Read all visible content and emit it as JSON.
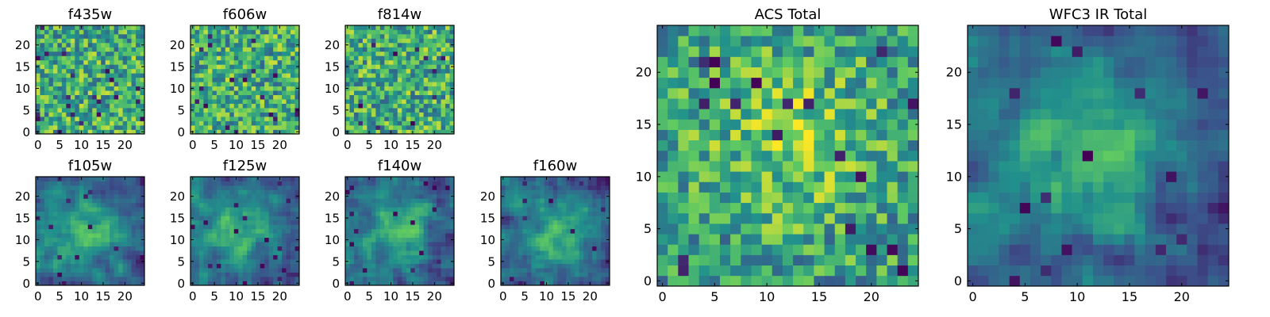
{
  "colormap": {
    "name": "viridis",
    "stops": [
      "#440154",
      "#3b528b",
      "#21918c",
      "#5ec962",
      "#fde725"
    ]
  },
  "chart_data": [
    {
      "type": "heatmap",
      "title": "f435w",
      "grid": [
        25,
        25
      ],
      "xticks": [
        "0",
        "5",
        "10",
        "15",
        "20"
      ],
      "yticks": [
        "0",
        "5",
        "10",
        "15",
        "20"
      ],
      "xlim": [
        -0.5,
        24.5
      ],
      "ylim": [
        -0.5,
        24.5
      ],
      "pattern": "noise",
      "center": [
        12,
        12
      ]
    },
    {
      "type": "heatmap",
      "title": "f606w",
      "grid": [
        25,
        25
      ],
      "xticks": [
        "0",
        "5",
        "10",
        "15",
        "20"
      ],
      "yticks": [
        "0",
        "5",
        "10",
        "15",
        "20"
      ],
      "xlim": [
        -0.5,
        24.5
      ],
      "ylim": [
        -0.5,
        24.5
      ],
      "pattern": "noise",
      "center": [
        12,
        12
      ]
    },
    {
      "type": "heatmap",
      "title": "f814w",
      "grid": [
        25,
        25
      ],
      "xticks": [
        "0",
        "5",
        "10",
        "15",
        "20"
      ],
      "yticks": [
        "0",
        "5",
        "10",
        "15",
        "20"
      ],
      "xlim": [
        -0.5,
        24.5
      ],
      "ylim": [
        -0.5,
        24.5
      ],
      "pattern": "noise",
      "center": [
        12,
        12
      ]
    },
    {
      "type": "heatmap",
      "title": "f105w",
      "grid": [
        25,
        25
      ],
      "xticks": [
        "0",
        "5",
        "10",
        "15",
        "20"
      ],
      "yticks": [
        "0",
        "5",
        "10",
        "15",
        "20"
      ],
      "xlim": [
        -0.5,
        24.5
      ],
      "ylim": [
        -0.5,
        24.5
      ],
      "pattern": "smooth blob",
      "center": [
        12,
        11
      ]
    },
    {
      "type": "heatmap",
      "title": "f125w",
      "grid": [
        25,
        25
      ],
      "xticks": [
        "0",
        "5",
        "10",
        "15",
        "20"
      ],
      "yticks": [
        "0",
        "5",
        "10",
        "15",
        "20"
      ],
      "xlim": [
        -0.5,
        24.5
      ],
      "ylim": [
        -0.5,
        24.5
      ],
      "pattern": "smooth blob",
      "center": [
        12,
        12
      ]
    },
    {
      "type": "heatmap",
      "title": "f140w",
      "grid": [
        25,
        25
      ],
      "xticks": [
        "0",
        "5",
        "10",
        "15",
        "20"
      ],
      "yticks": [
        "0",
        "5",
        "10",
        "15",
        "20"
      ],
      "xlim": [
        -0.5,
        24.5
      ],
      "ylim": [
        -0.5,
        24.5
      ],
      "pattern": "smooth blob",
      "center": [
        12,
        12
      ]
    },
    {
      "type": "heatmap",
      "title": "f160w",
      "grid": [
        25,
        25
      ],
      "xticks": [
        "0",
        "5",
        "10",
        "15",
        "20"
      ],
      "yticks": [
        "0",
        "5",
        "10",
        "15",
        "20"
      ],
      "xlim": [
        -0.5,
        24.5
      ],
      "ylim": [
        -0.5,
        24.5
      ],
      "pattern": "smooth blob",
      "center": [
        13,
        12
      ]
    },
    {
      "type": "heatmap",
      "title": "ACS Total",
      "grid": [
        25,
        25
      ],
      "xticks": [
        "0",
        "5",
        "10",
        "15",
        "20"
      ],
      "yticks": [
        "0",
        "5",
        "10",
        "15",
        "20"
      ],
      "xlim": [
        -0.5,
        24.5
      ],
      "ylim": [
        -0.5,
        24.5
      ],
      "pattern": "noise with bright center",
      "center": [
        12,
        14
      ]
    },
    {
      "type": "heatmap",
      "title": "WFC3 IR Total",
      "grid": [
        25,
        25
      ],
      "xticks": [
        "0",
        "5",
        "10",
        "15",
        "20"
      ],
      "yticks": [
        "0",
        "5",
        "10",
        "15",
        "20"
      ],
      "xlim": [
        -0.5,
        24.5
      ],
      "ylim": [
        -0.5,
        24.5
      ],
      "pattern": "smooth blob",
      "center": [
        12,
        13
      ]
    }
  ]
}
